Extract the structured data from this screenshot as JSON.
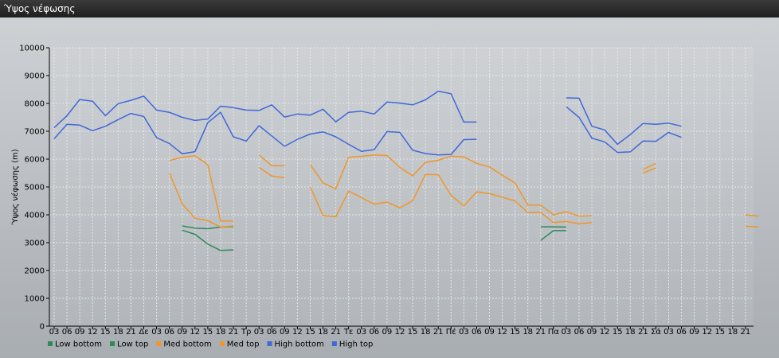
{
  "window": {
    "title": "Ύψος νέφωσης"
  },
  "chart_data": {
    "type": "line",
    "title": "Ύψος νέφωσης",
    "ylabel": "Ύψος νέφωσης (m)",
    "xlabel": "",
    "ylim": [
      0,
      10000
    ],
    "yticks": [
      0,
      1000,
      2000,
      3000,
      4000,
      5000,
      6000,
      7000,
      8000,
      9000,
      10000
    ],
    "grid": true,
    "legend_position": "bottom-left",
    "x_tick_labels": [
      "03",
      "06",
      "09",
      "12",
      "15",
      "18",
      "21",
      "Δε",
      "03",
      "06",
      "09",
      "12",
      "15",
      "18",
      "21",
      "Τρ",
      "03",
      "06",
      "09",
      "12",
      "15",
      "18",
      "21",
      "Τε",
      "03",
      "06",
      "09",
      "12",
      "15",
      "18",
      "21",
      "Πέ",
      "03",
      "06",
      "09",
      "12",
      "15",
      "18",
      "21",
      "Πα",
      "03",
      "06",
      "09",
      "12",
      "15",
      "18",
      "21",
      "Σά",
      "03",
      "06",
      "09",
      "12",
      "15",
      "18",
      "21"
    ],
    "series": [
      {
        "name": "Low bottom",
        "color": "#2e8b57",
        "segments": [
          [
            [
              10,
              3450
            ],
            [
              11,
              3300
            ],
            [
              12,
              2950
            ],
            [
              13,
              2720
            ],
            [
              14,
              2740
            ]
          ],
          [
            [
              38,
              3080
            ],
            [
              39,
              3430
            ],
            [
              40,
              3430
            ]
          ]
        ]
      },
      {
        "name": "Low top",
        "color": "#2e8b57",
        "segments": [
          [
            [
              10,
              3600
            ],
            [
              11,
              3520
            ],
            [
              12,
              3500
            ],
            [
              13,
              3560
            ],
            [
              14,
              3580
            ]
          ],
          [
            [
              38,
              3570
            ],
            [
              39,
              3570
            ],
            [
              40,
              3560
            ]
          ]
        ]
      },
      {
        "name": "Med bottom",
        "color": "#f0962a",
        "segments": [
          [
            [
              9,
              5500
            ],
            [
              10,
              4400
            ],
            [
              11,
              3880
            ],
            [
              12,
              3790
            ],
            [
              13,
              3560
            ],
            [
              14,
              3600
            ]
          ],
          [
            [
              16,
              5700
            ],
            [
              17,
              5390
            ],
            [
              18,
              5330
            ]
          ],
          [
            [
              20,
              5000
            ],
            [
              21,
              3980
            ],
            [
              22,
              3930
            ],
            [
              23,
              4850
            ],
            [
              24,
              4620
            ],
            [
              25,
              4380
            ],
            [
              26,
              4460
            ],
            [
              27,
              4250
            ],
            [
              28,
              4500
            ],
            [
              29,
              5450
            ],
            [
              30,
              5440
            ],
            [
              31,
              4700
            ],
            [
              32,
              4320
            ],
            [
              33,
              4820
            ],
            [
              34,
              4760
            ],
            [
              35,
              4630
            ],
            [
              36,
              4500
            ],
            [
              37,
              4080
            ],
            [
              38,
              4090
            ],
            [
              39,
              3720
            ],
            [
              40,
              3760
            ],
            [
              41,
              3680
            ],
            [
              42,
              3720
            ]
          ],
          [
            [
              46,
              5500
            ],
            [
              47,
              5680
            ]
          ],
          [
            [
              54,
              3590
            ],
            [
              55,
              3570
            ]
          ]
        ]
      },
      {
        "name": "Med top",
        "color": "#f0962a",
        "segments": [
          [
            [
              9,
              5950
            ],
            [
              10,
              6070
            ],
            [
              11,
              6120
            ],
            [
              12,
              5800
            ],
            [
              13,
              3780
            ],
            [
              14,
              3780
            ]
          ],
          [
            [
              16,
              6150
            ],
            [
              17,
              5760
            ],
            [
              18,
              5760
            ]
          ],
          [
            [
              20,
              5800
            ],
            [
              21,
              5150
            ],
            [
              22,
              4930
            ],
            [
              23,
              6070
            ],
            [
              24,
              6100
            ],
            [
              25,
              6150
            ],
            [
              26,
              6130
            ],
            [
              27,
              5700
            ],
            [
              28,
              5400
            ],
            [
              29,
              5880
            ],
            [
              30,
              5960
            ],
            [
              31,
              6110
            ],
            [
              32,
              6080
            ],
            [
              33,
              5850
            ],
            [
              34,
              5720
            ],
            [
              35,
              5420
            ],
            [
              36,
              5150
            ],
            [
              37,
              4350
            ],
            [
              38,
              4350
            ],
            [
              39,
              4000
            ],
            [
              40,
              4110
            ],
            [
              41,
              3950
            ],
            [
              42,
              3970
            ]
          ],
          [
            [
              46,
              5630
            ],
            [
              47,
              5850
            ]
          ],
          [
            [
              54,
              4000
            ],
            [
              55,
              3950
            ]
          ]
        ]
      },
      {
        "name": "High bottom",
        "color": "#3f68d8",
        "segments": [
          [
            [
              0,
              6730
            ],
            [
              1,
              7250
            ],
            [
              2,
              7220
            ],
            [
              3,
              7020
            ],
            [
              4,
              7180
            ],
            [
              5,
              7420
            ],
            [
              6,
              7640
            ],
            [
              7,
              7530
            ],
            [
              8,
              6770
            ],
            [
              9,
              6560
            ],
            [
              10,
              6190
            ],
            [
              11,
              6270
            ],
            [
              12,
              7310
            ],
            [
              13,
              7680
            ],
            [
              14,
              6800
            ],
            [
              15,
              6650
            ],
            [
              16,
              7200
            ],
            [
              17,
              6830
            ],
            [
              18,
              6460
            ],
            [
              19,
              6710
            ],
            [
              20,
              6900
            ],
            [
              21,
              6980
            ],
            [
              22,
              6800
            ],
            [
              23,
              6530
            ],
            [
              24,
              6280
            ],
            [
              25,
              6340
            ],
            [
              26,
              6990
            ],
            [
              27,
              6960
            ],
            [
              28,
              6320
            ],
            [
              29,
              6200
            ],
            [
              30,
              6150
            ],
            [
              31,
              6170
            ],
            [
              32,
              6700
            ],
            [
              33,
              6710
            ]
          ],
          [
            [
              40,
              7880
            ],
            [
              41,
              7500
            ],
            [
              42,
              6750
            ],
            [
              43,
              6620
            ],
            [
              44,
              6240
            ],
            [
              45,
              6260
            ],
            [
              46,
              6650
            ],
            [
              47,
              6640
            ],
            [
              48,
              6960
            ],
            [
              49,
              6780
            ]
          ]
        ]
      },
      {
        "name": "High top",
        "color": "#3f68d8",
        "segments": [
          [
            [
              0,
              7130
            ],
            [
              1,
              7560
            ],
            [
              2,
              8140
            ],
            [
              3,
              8080
            ],
            [
              4,
              7560
            ],
            [
              5,
              7990
            ],
            [
              6,
              8110
            ],
            [
              7,
              8260
            ],
            [
              8,
              7760
            ],
            [
              9,
              7680
            ],
            [
              10,
              7500
            ],
            [
              11,
              7390
            ],
            [
              12,
              7440
            ],
            [
              13,
              7900
            ],
            [
              14,
              7850
            ],
            [
              15,
              7760
            ],
            [
              16,
              7750
            ],
            [
              17,
              7950
            ],
            [
              18,
              7510
            ],
            [
              19,
              7620
            ],
            [
              20,
              7580
            ],
            [
              21,
              7790
            ],
            [
              22,
              7340
            ],
            [
              23,
              7680
            ],
            [
              24,
              7720
            ],
            [
              25,
              7620
            ],
            [
              26,
              8050
            ],
            [
              27,
              8010
            ],
            [
              28,
              7950
            ],
            [
              29,
              8130
            ],
            [
              30,
              8440
            ],
            [
              31,
              8350
            ],
            [
              32,
              7330
            ],
            [
              33,
              7330
            ]
          ],
          [
            [
              40,
              8200
            ],
            [
              41,
              8190
            ],
            [
              42,
              7180
            ],
            [
              43,
              7050
            ],
            [
              44,
              6530
            ],
            [
              45,
              6880
            ],
            [
              46,
              7280
            ],
            [
              47,
              7250
            ],
            [
              48,
              7290
            ],
            [
              49,
              7180
            ]
          ]
        ]
      }
    ]
  }
}
